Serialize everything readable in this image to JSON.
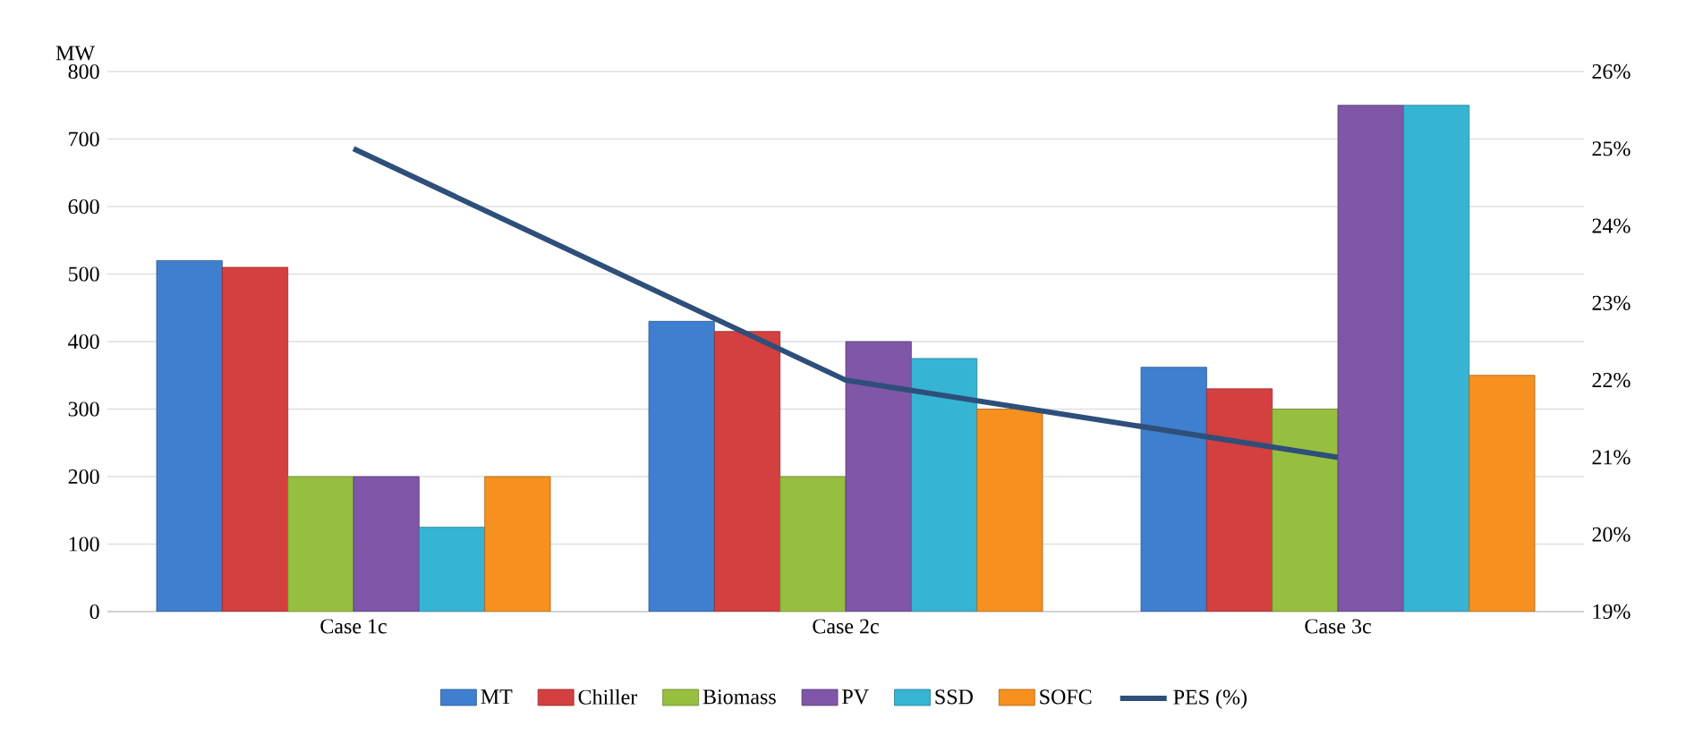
{
  "chart_data": {
    "type": "bar",
    "ylabel": "MW",
    "categories": [
      "Case 1c",
      "Case 2c",
      "Case 3c"
    ],
    "series": [
      {
        "name": "MT",
        "color": "#3f7fcf",
        "values": [
          520,
          430,
          362
        ]
      },
      {
        "name": "Chiller",
        "color": "#d43f3f",
        "values": [
          510,
          415,
          330
        ]
      },
      {
        "name": "Biomass",
        "color": "#96bf3f",
        "values": [
          200,
          200,
          300
        ]
      },
      {
        "name": "PV",
        "color": "#7f56a8",
        "values": [
          200,
          400,
          750
        ]
      },
      {
        "name": "SSD",
        "color": "#36b4d4",
        "values": [
          125,
          375,
          750
        ]
      },
      {
        "name": "SOFC",
        "color": "#f6901e",
        "values": [
          200,
          300,
          350
        ]
      },
      {
        "name": "PES (%)",
        "color": "#2e4f7a",
        "type": "line",
        "axis": "y2",
        "values": [
          25,
          22,
          21
        ]
      }
    ],
    "ylim": [
      0,
      800
    ],
    "yticks": [
      0,
      100,
      200,
      300,
      400,
      500,
      600,
      700,
      800
    ],
    "y2lim": [
      19,
      26
    ],
    "y2ticks": [
      {
        "value": 19,
        "label": "19%"
      },
      {
        "value": 20,
        "label": "20%"
      },
      {
        "value": 21,
        "label": "21%"
      },
      {
        "value": 22,
        "label": "22%"
      },
      {
        "value": 23,
        "label": "23%"
      },
      {
        "value": 24,
        "label": "24%"
      },
      {
        "value": 25,
        "label": "25%"
      },
      {
        "value": 26,
        "label": "26%"
      }
    ],
    "grid": "y",
    "legend": "bottom"
  }
}
